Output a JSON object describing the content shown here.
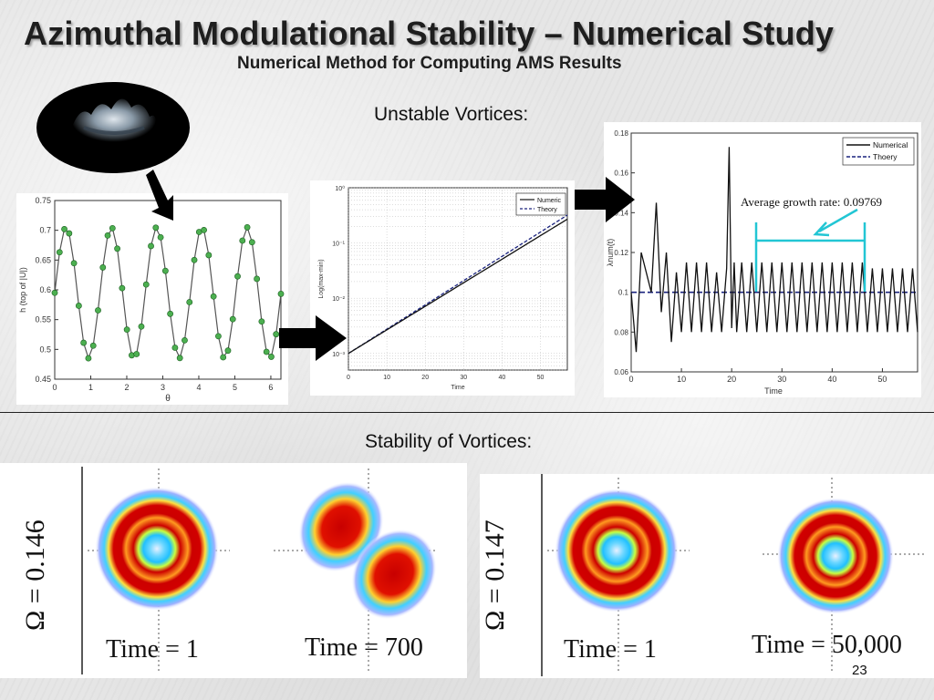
{
  "title": "Azimuthal Modulational Stability – Numerical Study",
  "subtitle": "Numerical Method for Computing AMS Results",
  "unstable_label": "Unstable Vortices:",
  "stability_label": "Stability of Vortices:",
  "page_number": "23",
  "colors": {
    "marker": "#4caf50",
    "theory": "#1a237e",
    "annotation": "#22c6d4",
    "arrow": "#000000"
  },
  "omega": {
    "left": "Ω = 0.146",
    "right": "Ω = 0.147"
  },
  "times": {
    "t1": "Time = 1",
    "t700": "Time = 700",
    "t1b": "Time = 1",
    "t50000": "Time = 50,000"
  },
  "plot1": {
    "ylabel": "h (top of |U|)",
    "xlabel": "θ",
    "yticks": [
      "0.75",
      "0.7",
      "0.65",
      "0.6",
      "0.55",
      "0.5",
      "0.45"
    ],
    "xticks": [
      "0",
      "1",
      "2",
      "3",
      "4",
      "5",
      "6"
    ]
  },
  "plot2": {
    "ylabel": "Log(max-min)",
    "xlabel": "Time",
    "yticks": [
      "10⁰",
      "10⁻¹",
      "10⁻²",
      "10⁻³"
    ],
    "xticks": [
      "0",
      "10",
      "20",
      "30",
      "40",
      "50"
    ],
    "legend": [
      "Numeric",
      "Theory"
    ]
  },
  "plot3": {
    "ylabel": "λnum(t)",
    "xlabel": "Time",
    "yticks": [
      "0.18",
      "0.16",
      "0.14",
      "0.12",
      "0.1",
      "0.08",
      "0.06"
    ],
    "xticks": [
      "0",
      "10",
      "20",
      "30",
      "40",
      "50"
    ],
    "legend": [
      "Numerical",
      "Thoery"
    ],
    "annotation": "Average growth rate:  0.09769"
  },
  "chart_data": [
    {
      "type": "scatter",
      "xlabel": "θ",
      "ylabel": "h (top of |U|)",
      "xlim": [
        0,
        6.28
      ],
      "ylim": [
        0.45,
        0.75
      ],
      "series": [
        {
          "function": "0.595 + 0.11*sin(5θ)",
          "points": 48
        }
      ]
    },
    {
      "type": "line",
      "xlabel": "Time",
      "ylabel": "Log(max-min)",
      "yscale": "log",
      "xlim": [
        0,
        57
      ],
      "ylim": [
        0.0005,
        1
      ],
      "series": [
        {
          "name": "Numeric",
          "x": [
            0,
            57
          ],
          "y": [
            0.001,
            0.27
          ]
        },
        {
          "name": "Theory",
          "x": [
            0,
            57
          ],
          "y": [
            0.001,
            0.32
          ]
        }
      ]
    },
    {
      "type": "line",
      "xlabel": "Time",
      "ylabel": "λnum(t)",
      "xlim": [
        0,
        57
      ],
      "ylim": [
        0.06,
        0.18
      ],
      "annotation": "Average growth rate:  0.09769",
      "series": [
        {
          "name": "Numerical",
          "x": [
            0,
            1,
            2,
            3,
            4,
            5,
            6,
            7,
            8,
            9,
            10,
            11,
            12,
            13,
            14,
            15,
            16,
            17,
            18,
            19,
            19.5,
            20,
            20.5,
            21,
            22,
            23,
            24,
            25,
            26,
            27,
            28,
            29,
            30,
            31,
            32,
            33,
            34,
            35,
            36,
            37,
            38,
            39,
            40,
            41,
            42,
            43,
            44,
            45,
            46,
            47,
            48,
            49,
            50,
            51,
            52,
            53,
            54,
            55,
            56,
            57
          ],
          "y": [
            0.1,
            0.07,
            0.12,
            0.11,
            0.1,
            0.145,
            0.09,
            0.12,
            0.075,
            0.11,
            0.08,
            0.115,
            0.08,
            0.115,
            0.08,
            0.115,
            0.08,
            0.11,
            0.08,
            0.112,
            0.173,
            0.082,
            0.115,
            0.08,
            0.115,
            0.08,
            0.115,
            0.08,
            0.115,
            0.08,
            0.115,
            0.08,
            0.115,
            0.08,
            0.115,
            0.08,
            0.115,
            0.08,
            0.115,
            0.08,
            0.115,
            0.08,
            0.115,
            0.08,
            0.115,
            0.08,
            0.115,
            0.08,
            0.115,
            0.08,
            0.112,
            0.08,
            0.112,
            0.08,
            0.112,
            0.08,
            0.112,
            0.08,
            0.112,
            0.08
          ]
        },
        {
          "name": "Thoery",
          "x": [
            0,
            57
          ],
          "y": [
            0.1,
            0.1
          ]
        }
      ]
    }
  ]
}
